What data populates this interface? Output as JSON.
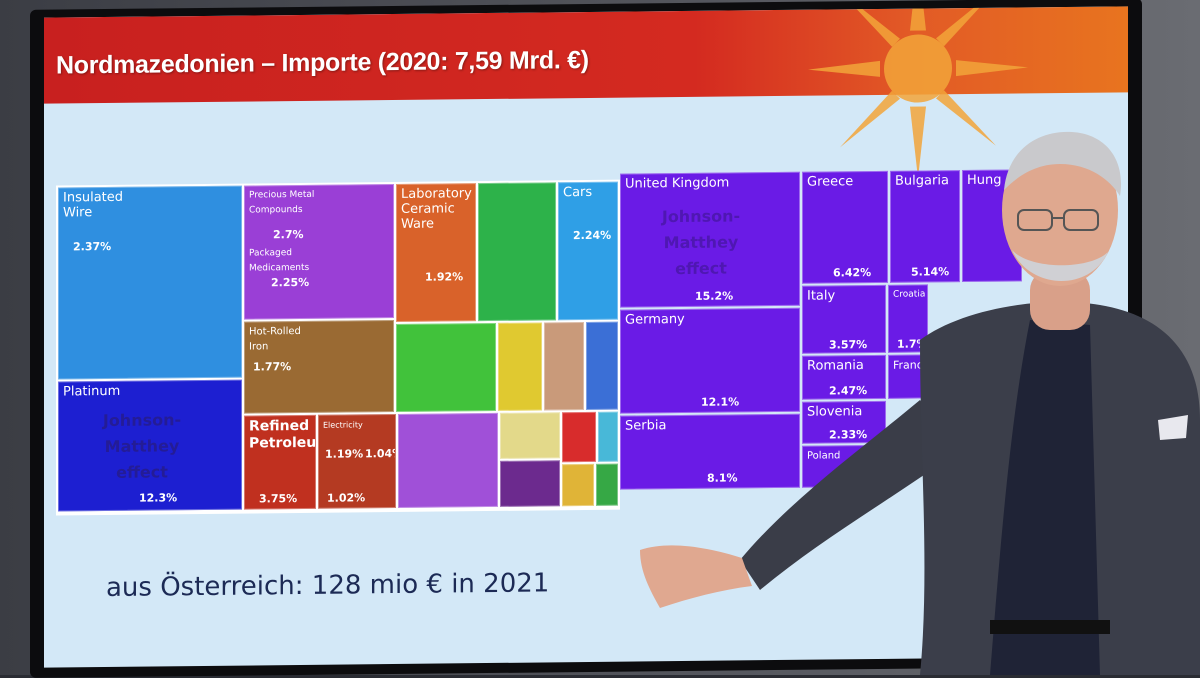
{
  "slide": {
    "title": "Nordmazedonien – Importe (2020: 7,59 Mrd. €)",
    "footer": "aus Österreich: 128 mio € in 2021"
  },
  "products": {
    "insulated_wire": {
      "label": "Insulated Wire",
      "pct": "2.37%"
    },
    "platinum": {
      "label": "Platinum",
      "pct": "12.3%",
      "overlay": "Johnson-Matthey effect"
    },
    "precious_metal": {
      "label": "Precious Metal Compounds",
      "pct": "2.7%"
    },
    "packaged_med": {
      "label": "Packaged Medicaments",
      "pct": "2.25%"
    },
    "lab_ceramic": {
      "label": "Laboratory Ceramic Ware",
      "pct": "1.92%"
    },
    "cars": {
      "label": "Cars",
      "pct": "2.24%"
    },
    "hot_rolled": {
      "label": "Hot-Rolled Iron",
      "pct": "1.77%"
    },
    "refined_petroleum": {
      "label": "Refined Petroleum",
      "pct": "3.75%"
    },
    "electricity": {
      "label": "Electricity",
      "pct": "1.19%"
    },
    "crude": {
      "pct": "1.02%"
    },
    "petroleum_gas": {
      "pct": "1.04%"
    }
  },
  "countries": {
    "uk": {
      "label": "United Kingdom",
      "pct": "15.2%",
      "overlay": "Johnson-Matthey effect"
    },
    "germany": {
      "label": "Germany",
      "pct": "12.1%"
    },
    "serbia": {
      "label": "Serbia",
      "pct": "8.1%"
    },
    "greece": {
      "label": "Greece",
      "pct": "6.42%"
    },
    "bulgaria": {
      "label": "Bulgaria",
      "pct": "5.14%"
    },
    "hungary": {
      "label": "Hung"
    },
    "italy": {
      "label": "Italy",
      "pct": "3.57%"
    },
    "croatia": {
      "label": "Croatia",
      "pct": "1.7%"
    },
    "romania": {
      "label": "Romania",
      "pct": "2.47%"
    },
    "france": {
      "label": "Franc"
    },
    "slovenia": {
      "label": "Slovenia",
      "pct": "2.33%"
    },
    "poland": {
      "label": "Poland"
    }
  },
  "colors": {
    "banner": "#c8201f",
    "sky_blue": "#2f8fe0",
    "purple": "#9a3fd6",
    "orange": "#d9622a",
    "green": "#2db24a",
    "brown": "#9a5a2e",
    "red": "#c0301f",
    "navy": "#1d1fd1",
    "violet": "#6a1be6"
  }
}
